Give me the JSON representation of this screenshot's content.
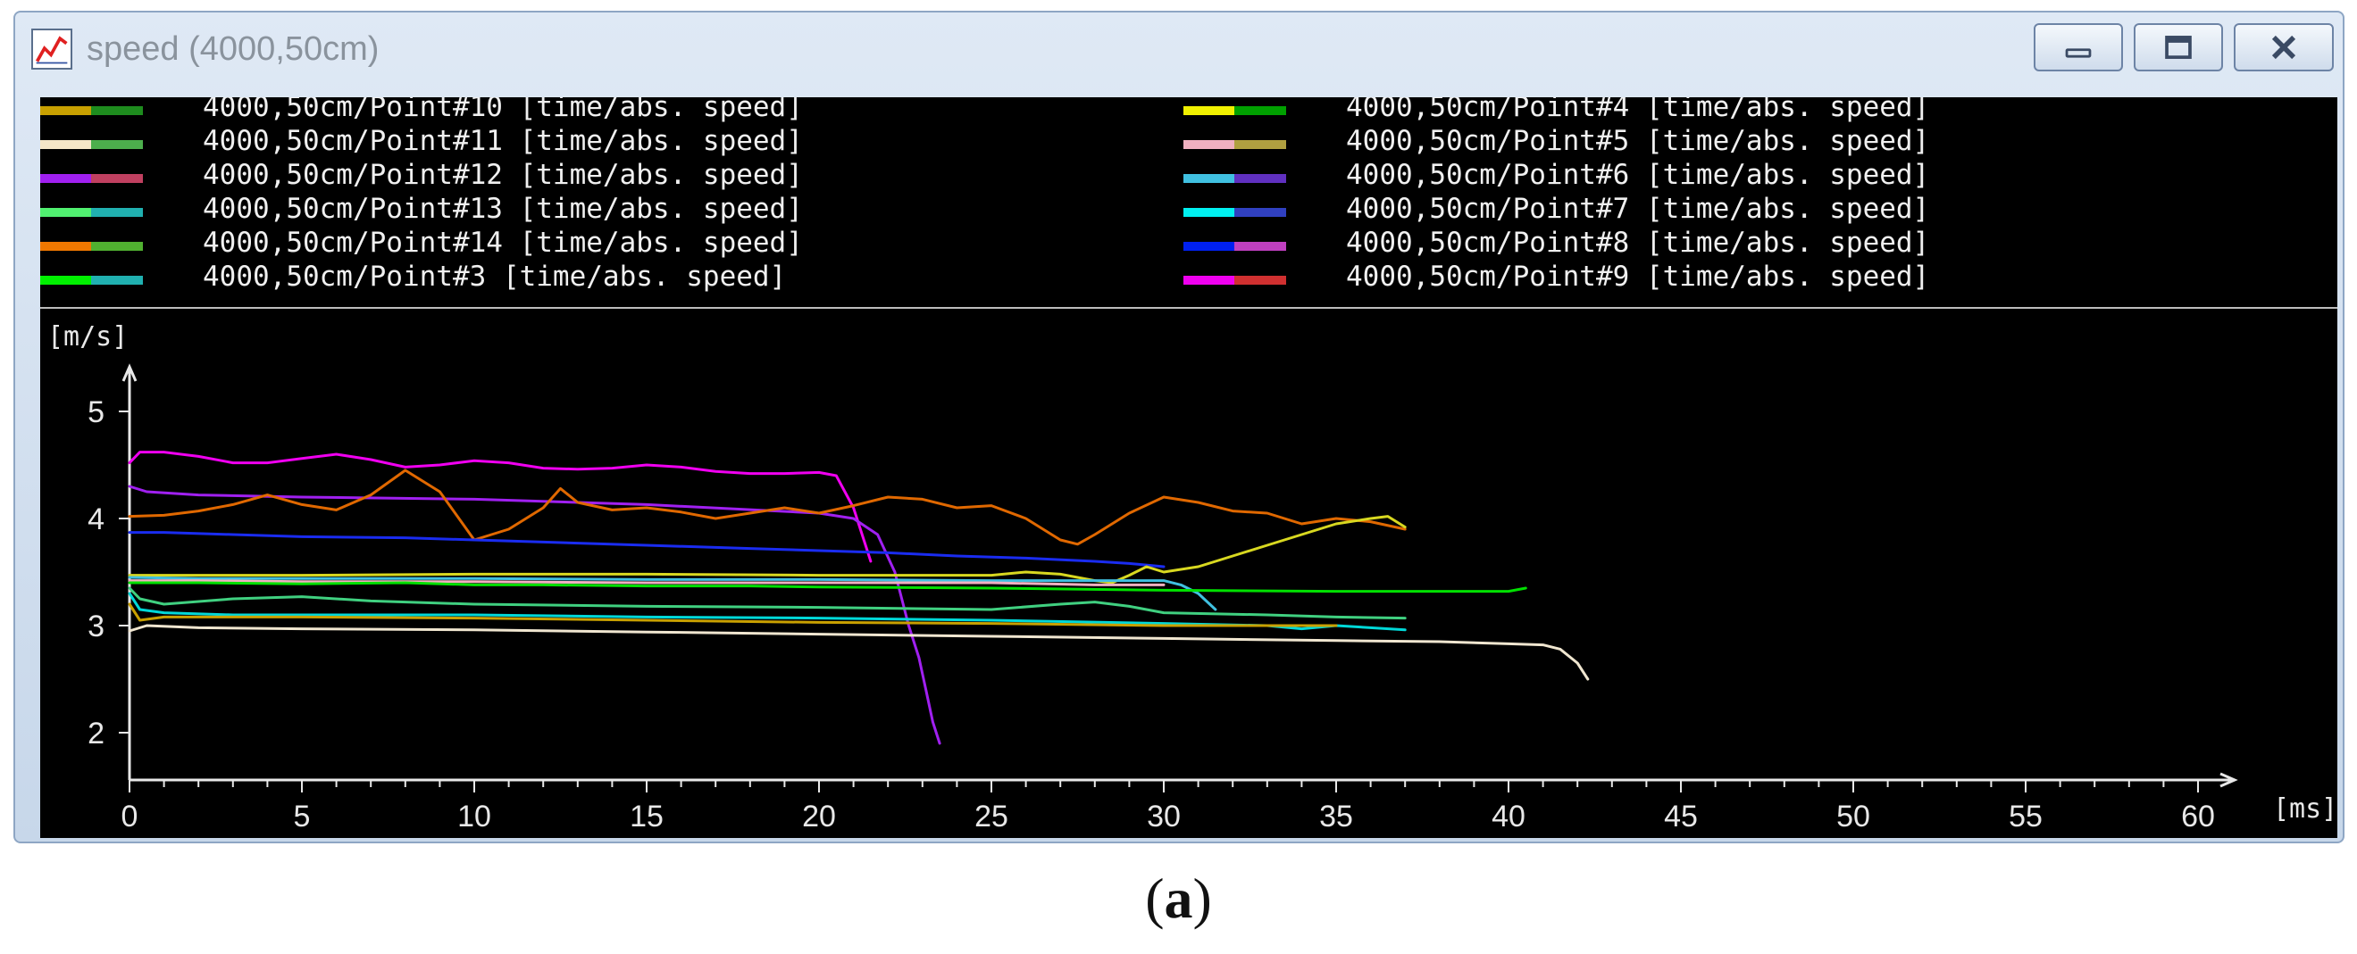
{
  "window": {
    "title": "speed (4000,50cm)",
    "icon": "chart-icon",
    "controls": {
      "minimize": "minimize-icon",
      "maximize": "maximize-icon",
      "close": "close-icon"
    }
  },
  "legend": [
    {
      "label": "4000,50cm/Point#10 [time/abs. speed]",
      "c1": "#c8a000",
      "c2": "#1e8c1e"
    },
    {
      "label": "4000,50cm/Point#11 [time/abs. speed]",
      "c1": "#f5e6c8",
      "c2": "#4cae4c"
    },
    {
      "label": "4000,50cm/Point#12 [time/abs. speed]",
      "c1": "#a020f0",
      "c2": "#c04060"
    },
    {
      "label": "4000,50cm/Point#13 [time/abs. speed]",
      "c1": "#50f070",
      "c2": "#20b0b0"
    },
    {
      "label": "4000,50cm/Point#14 [time/abs. speed]",
      "c1": "#f07800",
      "c2": "#50b030"
    },
    {
      "label": "4000,50cm/Point#3 [time/abs. speed]",
      "c1": "#00f000",
      "c2": "#20b0b0"
    },
    {
      "label": "4000,50cm/Point#4 [time/abs. speed]",
      "c1": "#f0f000",
      "c2": "#00a000"
    },
    {
      "label": "4000,50cm/Point#5 [time/abs. speed]",
      "c1": "#f0b0c0",
      "c2": "#b0a040"
    },
    {
      "label": "4000,50cm/Point#6 [time/abs. speed]",
      "c1": "#40c0e0",
      "c2": "#6030c0"
    },
    {
      "label": "4000,50cm/Point#7 [time/abs. speed]",
      "c1": "#00f0f0",
      "c2": "#3040c0"
    },
    {
      "label": "4000,50cm/Point#8 [time/abs. speed]",
      "c1": "#0020f0",
      "c2": "#c040c0"
    },
    {
      "label": "4000,50cm/Point#9 [time/abs. speed]",
      "c1": "#f000f0",
      "c2": "#d03030"
    }
  ],
  "chart_data": {
    "type": "line",
    "ylabel": "[m/s]",
    "xlabel": "[ms]",
    "xlim": [
      0,
      60
    ],
    "ylim": [
      1.5,
      5.5
    ],
    "xticks": [
      0,
      5,
      10,
      15,
      20,
      25,
      30,
      35,
      40,
      45,
      50,
      55,
      60
    ],
    "yticks": [
      2,
      3,
      4,
      5
    ],
    "grid": false,
    "background": "#000000",
    "series": [
      {
        "name": "4000,50cm/Point#9",
        "color": "#f000f0",
        "x": [
          0,
          0.3,
          1,
          2,
          3,
          4,
          5,
          6,
          7,
          8,
          9,
          10,
          11,
          12,
          13,
          14,
          15,
          16,
          17,
          18,
          19,
          20,
          20.5,
          21,
          21.3,
          21.5
        ],
        "y": [
          4.52,
          4.62,
          4.62,
          4.58,
          4.52,
          4.52,
          4.56,
          4.6,
          4.55,
          4.48,
          4.5,
          4.54,
          4.52,
          4.47,
          4.46,
          4.47,
          4.5,
          4.48,
          4.44,
          4.42,
          4.42,
          4.43,
          4.4,
          4.1,
          3.8,
          3.6
        ]
      },
      {
        "name": "4000,50cm/Point#12",
        "color": "#a020f0",
        "x": [
          0,
          0.5,
          2,
          5,
          10,
          15,
          20,
          21,
          21.7,
          22.2,
          22.6,
          22.9,
          23.1,
          23.3,
          23.5
        ],
        "y": [
          4.3,
          4.25,
          4.22,
          4.2,
          4.18,
          4.13,
          4.05,
          4.0,
          3.85,
          3.5,
          3.0,
          2.7,
          2.4,
          2.1,
          1.9
        ]
      },
      {
        "name": "4000,50cm/Point#14",
        "color": "#e06800",
        "x": [
          0,
          1,
          2,
          3,
          4,
          5,
          6,
          7,
          8,
          9,
          10,
          11,
          12,
          12.5,
          13,
          14,
          15,
          16,
          17,
          18,
          19,
          20,
          21,
          22,
          23,
          24,
          25,
          26,
          27,
          27.5,
          28,
          29,
          30,
          31,
          32,
          33,
          34,
          35,
          36,
          37
        ],
        "y": [
          4.02,
          4.03,
          4.07,
          4.13,
          4.22,
          4.13,
          4.08,
          4.22,
          4.45,
          4.25,
          3.8,
          3.9,
          4.1,
          4.28,
          4.15,
          4.08,
          4.1,
          4.06,
          4.0,
          4.05,
          4.1,
          4.05,
          4.12,
          4.2,
          4.18,
          4.1,
          4.12,
          4.0,
          3.8,
          3.76,
          3.85,
          4.05,
          4.2,
          4.15,
          4.07,
          4.05,
          3.95,
          4.0,
          3.97,
          3.9
        ]
      },
      {
        "name": "4000,50cm/Point#8",
        "color": "#1a2cf0",
        "x": [
          0,
          1,
          3,
          5,
          8,
          10,
          12,
          15,
          18,
          20,
          22,
          24,
          26,
          28,
          29,
          30
        ],
        "y": [
          3.87,
          3.87,
          3.85,
          3.83,
          3.82,
          3.8,
          3.78,
          3.75,
          3.72,
          3.7,
          3.68,
          3.65,
          3.63,
          3.6,
          3.58,
          3.55
        ]
      },
      {
        "name": "4000,50cm/Point#4",
        "color": "#d8d820",
        "x": [
          0,
          2,
          5,
          10,
          15,
          20,
          25,
          26,
          27,
          28,
          28.5,
          29,
          29.5,
          30,
          31,
          32,
          33,
          34,
          35,
          36,
          36.5,
          37
        ],
        "y": [
          3.47,
          3.47,
          3.47,
          3.48,
          3.48,
          3.47,
          3.47,
          3.5,
          3.48,
          3.42,
          3.4,
          3.47,
          3.55,
          3.5,
          3.55,
          3.65,
          3.75,
          3.85,
          3.95,
          4.0,
          4.02,
          3.92
        ]
      },
      {
        "name": "4000,50cm/Point#6",
        "color": "#40c0e0",
        "x": [
          0,
          2,
          5,
          10,
          15,
          20,
          25,
          29,
          30,
          30.5,
          31,
          31.5
        ],
        "y": [
          3.45,
          3.44,
          3.44,
          3.44,
          3.43,
          3.43,
          3.42,
          3.42,
          3.42,
          3.38,
          3.3,
          3.15
        ]
      },
      {
        "name": "4000,50cm/Point#5",
        "color": "#f0b0c0",
        "x": [
          0,
          2,
          5,
          10,
          15,
          20,
          25,
          28,
          30
        ],
        "y": [
          3.42,
          3.42,
          3.41,
          3.41,
          3.4,
          3.4,
          3.4,
          3.38,
          3.38
        ]
      },
      {
        "name": "4000,50cm/Point#3",
        "color": "#00e000",
        "x": [
          0,
          2,
          5,
          8,
          10,
          12,
          15,
          18,
          20,
          25,
          30,
          35,
          38,
          40,
          40.5
        ],
        "y": [
          3.4,
          3.4,
          3.39,
          3.4,
          3.38,
          3.38,
          3.37,
          3.37,
          3.36,
          3.35,
          3.33,
          3.32,
          3.32,
          3.32,
          3.35
        ]
      },
      {
        "name": "4000,50cm/Point#13",
        "color": "#40d080",
        "x": [
          0,
          0.3,
          1,
          3,
          5,
          7,
          10,
          15,
          20,
          25,
          27,
          28,
          29,
          30,
          33,
          35,
          37
        ],
        "y": [
          3.35,
          3.25,
          3.2,
          3.25,
          3.27,
          3.23,
          3.2,
          3.18,
          3.17,
          3.15,
          3.2,
          3.22,
          3.18,
          3.12,
          3.1,
          3.08,
          3.07
        ]
      },
      {
        "name": "4000,50cm/Point#7",
        "color": "#00d8d8",
        "x": [
          0,
          0.3,
          1,
          3,
          5,
          10,
          15,
          20,
          25,
          30,
          33,
          34,
          35,
          37
        ],
        "y": [
          3.3,
          3.15,
          3.12,
          3.1,
          3.1,
          3.1,
          3.08,
          3.07,
          3.05,
          3.02,
          3.0,
          2.97,
          3.0,
          2.96
        ]
      },
      {
        "name": "4000,50cm/Point#10",
        "color": "#c8a000",
        "x": [
          0,
          0.3,
          1,
          3,
          5,
          10,
          15,
          20,
          25,
          30,
          35
        ],
        "y": [
          3.2,
          3.05,
          3.08,
          3.08,
          3.08,
          3.07,
          3.05,
          3.03,
          3.02,
          3.0,
          3.0
        ]
      },
      {
        "name": "4000,50cm/Point#11",
        "color": "#f0e6d0",
        "x": [
          0,
          0.5,
          2,
          5,
          10,
          15,
          20,
          25,
          30,
          35,
          38,
          40,
          41,
          41.5,
          42,
          42.3
        ],
        "y": [
          2.95,
          3.0,
          2.98,
          2.97,
          2.96,
          2.94,
          2.92,
          2.9,
          2.88,
          2.86,
          2.85,
          2.83,
          2.82,
          2.78,
          2.65,
          2.5
        ]
      }
    ]
  },
  "caption": {
    "open": "(",
    "letter": "a",
    "close": ")"
  }
}
